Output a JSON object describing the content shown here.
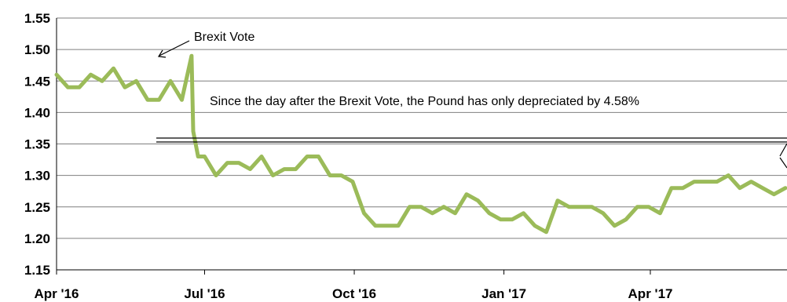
{
  "chart_data": {
    "type": "line",
    "title": "",
    "xlabel": "",
    "ylabel": "",
    "ylim": [
      1.15,
      1.55
    ],
    "yticks": [
      "1.15",
      "1.20",
      "1.25",
      "1.30",
      "1.35",
      "1.40",
      "1.45",
      "1.50",
      "1.55"
    ],
    "xticks": [
      "Apr '16",
      "Jul '16",
      "Oct '16",
      "Jan '17",
      "Apr '17"
    ],
    "grid": "horizontal",
    "line_color": "#9bbb59",
    "annotations": {
      "brexit_vote": "Brexit Vote",
      "since_text": "Since the day after the Brexit Vote, the Pound has only depreciated by 4.58%"
    },
    "x": [
      "2016-04-01",
      "2016-04-08",
      "2016-04-15",
      "2016-04-22",
      "2016-04-29",
      "2016-05-06",
      "2016-05-13",
      "2016-05-20",
      "2016-05-27",
      "2016-06-03",
      "2016-06-10",
      "2016-06-17",
      "2016-06-23",
      "2016-06-24",
      "2016-06-27",
      "2016-07-01",
      "2016-07-08",
      "2016-07-15",
      "2016-07-22",
      "2016-07-29",
      "2016-08-05",
      "2016-08-12",
      "2016-08-19",
      "2016-08-26",
      "2016-09-02",
      "2016-09-09",
      "2016-09-16",
      "2016-09-23",
      "2016-09-30",
      "2016-10-07",
      "2016-10-14",
      "2016-10-21",
      "2016-10-28",
      "2016-11-04",
      "2016-11-11",
      "2016-11-18",
      "2016-11-25",
      "2016-12-02",
      "2016-12-09",
      "2016-12-16",
      "2016-12-23",
      "2016-12-30",
      "2017-01-06",
      "2017-01-13",
      "2017-01-20",
      "2017-01-27",
      "2017-02-03",
      "2017-02-10",
      "2017-02-17",
      "2017-02-24",
      "2017-03-03",
      "2017-03-10",
      "2017-03-17",
      "2017-03-24",
      "2017-03-31",
      "2017-04-07",
      "2017-04-14",
      "2017-04-21",
      "2017-04-28",
      "2017-05-05",
      "2017-05-12",
      "2017-05-19",
      "2017-05-26",
      "2017-06-02",
      "2017-06-09",
      "2017-06-16",
      "2017-06-23"
    ],
    "series": [
      {
        "values": [
          1.46,
          1.44,
          1.44,
          1.46,
          1.45,
          1.47,
          1.44,
          1.45,
          1.42,
          1.42,
          1.45,
          1.42,
          1.49,
          1.37,
          1.33,
          1.33,
          1.3,
          1.32,
          1.32,
          1.31,
          1.33,
          1.3,
          1.31,
          1.31,
          1.33,
          1.33,
          1.3,
          1.3,
          1.29,
          1.24,
          1.22,
          1.22,
          1.22,
          1.25,
          1.25,
          1.24,
          1.25,
          1.24,
          1.27,
          1.26,
          1.24,
          1.23,
          1.23,
          1.24,
          1.22,
          1.21,
          1.26,
          1.25,
          1.25,
          1.25,
          1.24,
          1.22,
          1.23,
          1.25,
          1.25,
          1.24,
          1.28,
          1.28,
          1.29,
          1.29,
          1.29,
          1.3,
          1.28,
          1.29,
          1.28,
          1.27,
          1.28
        ]
      }
    ]
  }
}
